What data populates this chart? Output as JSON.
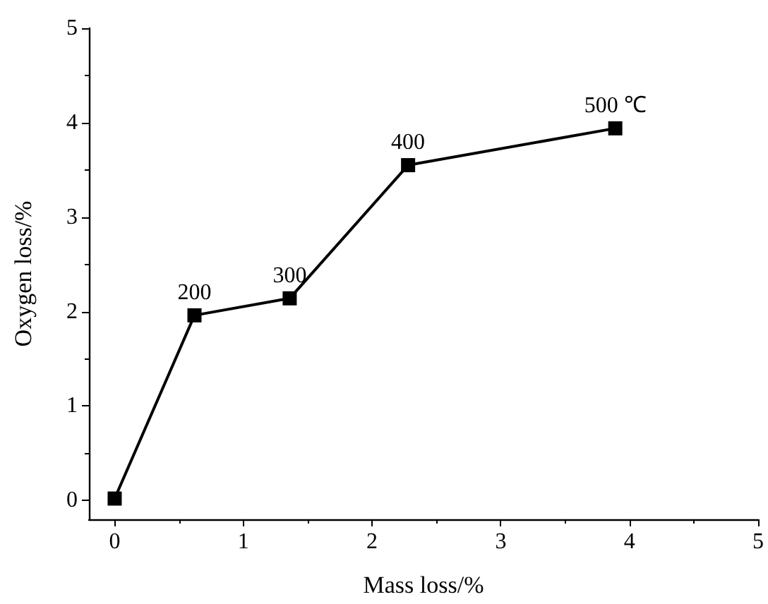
{
  "chart_data": {
    "type": "line",
    "xlabel": "Mass loss/%",
    "ylabel": "Oxygen loss/%",
    "x": [
      0,
      0.62,
      1.36,
      2.28,
      3.89
    ],
    "series": [
      {
        "color": "#000000",
        "values": [
          0.02,
          1.96,
          2.14,
          3.55,
          3.94
        ]
      }
    ],
    "xlim": [
      -0.2,
      5
    ],
    "ylim": [
      -0.2,
      5
    ],
    "xticks": [
      0,
      1,
      2,
      3,
      4,
      5
    ],
    "yticks": [
      0,
      1,
      2,
      3,
      4,
      5
    ],
    "annotations": [
      {
        "text": "200",
        "x": 0.62,
        "y": 1.96
      },
      {
        "text": "300",
        "x": 1.36,
        "y": 2.14
      },
      {
        "text": "400",
        "x": 2.28,
        "y": 3.55
      },
      {
        "text": "500 ℃",
        "x": 3.89,
        "y": 3.94
      }
    ],
    "marker": "square",
    "line_style": "solid"
  }
}
